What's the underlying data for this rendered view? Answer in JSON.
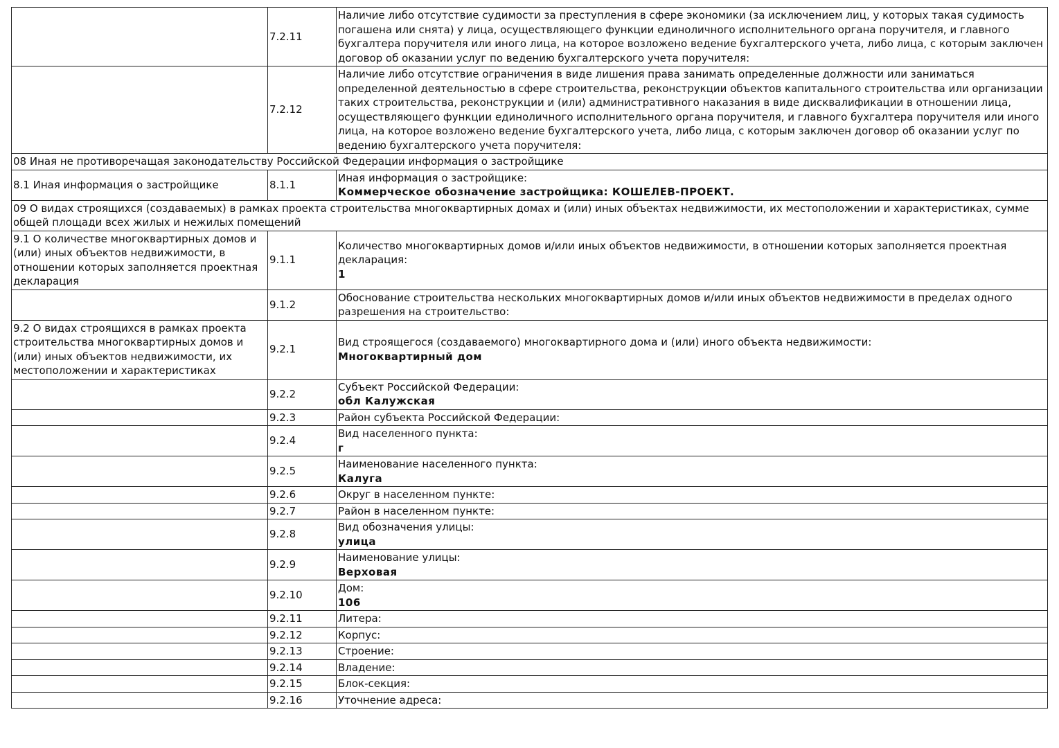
{
  "table": {
    "rows": [
      {
        "code": "7.2.11",
        "label": "Наличие либо отсутствие судимости за преступления в сфере экономики (за исключением лиц, у которых такая судимость погашена или снята) у лица, осуществляющего функции единоличного исполнительного органа поручителя, и главного бухгалтера поручителя или иного лица, на которое возложено ведение бухгалтерского учета, либо лица, с которым заключен договор об оказании услуг по ведению бухгалтерского учета поручителя:"
      },
      {
        "code": "7.2.12",
        "label": "Наличие либо отсутствие ограничения в виде лишения права занимать определенные должности или заниматься определенной деятельностью в сфере строительства, реконструкции объектов капитального строительства или организации таких строительства, реконструкции и (или) административного наказания в виде дисквалификации в отношении лица, осуществляющего функции единоличного исполнительного органа поручителя, и главного бухгалтера поручителя или иного лица, на которое возложено ведение бухгалтерского учета, либо лица, с которым заключен договор об оказании услуг по ведению бухгалтерского учета поручителя:"
      },
      {
        "heading": "08 Иная не противоречащая законодательству Российской Федерации информация о застройщике"
      },
      {
        "group": "8.1 Иная информация о застройщике",
        "code": "8.1.1",
        "label": "Иная информация о застройщике:",
        "value": "Коммерческое обозначение застройщика: КОШЕЛЕВ-ПРОЕКТ."
      },
      {
        "heading": "09 О видах строящихся (создаваемых) в рамках проекта строительства многоквартирных домах и (или) иных объектах недвижимости, их местоположении и характеристиках, сумме общей площади всех жилых и нежилых помещений"
      },
      {
        "group": "9.1 О количестве многоквартирных домов и (или) иных объектов недвижимости, в отношении которых заполняется проектная декларация",
        "code": "9.1.1",
        "label": "Количество многоквартирных домов и/или иных объектов недвижимости, в отношении которых заполняется проектная декларация:",
        "value": "1"
      },
      {
        "code": "9.1.2",
        "label": "Обоснование строительства нескольких многоквартирных домов и/или иных объектов недвижимости в пределах одного разрешения на строительство:"
      },
      {
        "group": "9.2 О видах строящихся в рамках проекта строительства многоквартирных домов и (или) иных объектов недвижимости, их местоположении и характеристиках",
        "code": "9.2.1",
        "label": "Вид строящегося (создаваемого) многоквартирного дома и (или) иного объекта недвижимости:",
        "value": "Многоквартирный дом"
      },
      {
        "code": "9.2.2",
        "label": "Субъект Российской Федерации:",
        "value": "обл Калужская"
      },
      {
        "code": "9.2.3",
        "label": "Район субъекта Российской Федерации:"
      },
      {
        "code": "9.2.4",
        "label": "Вид населенного пункта:",
        "value": "г"
      },
      {
        "code": "9.2.5",
        "label": "Наименование населенного пункта:",
        "value": "Калуга"
      },
      {
        "code": "9.2.6",
        "label": "Округ в населенном пункте:"
      },
      {
        "code": "9.2.7",
        "label": "Район в населенном пункте:"
      },
      {
        "code": "9.2.8",
        "label": "Вид обозначения улицы:",
        "value": "улица"
      },
      {
        "code": "9.2.9",
        "label": "Наименование улицы:",
        "value": "Верховая"
      },
      {
        "code": "9.2.10",
        "label": "Дом:",
        "value": "106"
      },
      {
        "code": "9.2.11",
        "label": "Литера:"
      },
      {
        "code": "9.2.12",
        "label": "Корпус:"
      },
      {
        "code": "9.2.13",
        "label": "Строение:"
      },
      {
        "code": "9.2.14",
        "label": "Владение:"
      },
      {
        "code": "9.2.15",
        "label": "Блок-секция:"
      },
      {
        "code": "9.2.16",
        "label": "Уточнение адреса:"
      }
    ]
  }
}
